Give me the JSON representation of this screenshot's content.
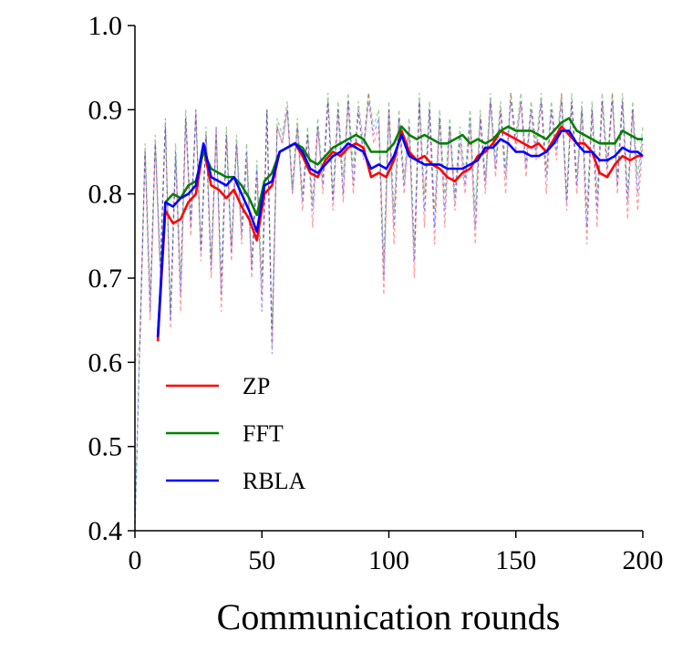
{
  "chart_data": {
    "type": "line",
    "title": "",
    "xlabel": "Communication rounds",
    "ylabel": "",
    "xlim": [
      0,
      200
    ],
    "ylim": [
      0.4,
      1.0
    ],
    "xticks": [
      0,
      50,
      100,
      150,
      200
    ],
    "xtick_labels": [
      "0",
      "50",
      "100",
      "150",
      "200"
    ],
    "yticks": [
      0.4,
      0.5,
      0.6,
      0.7,
      0.8,
      0.9,
      1.0
    ],
    "ytick_labels": [
      "0.4",
      "0.5",
      "0.6",
      "0.7",
      "0.8",
      "0.9",
      "1.0"
    ],
    "grid": false,
    "legend_position": "lower-left",
    "series": [
      {
        "name": "ZP",
        "color": "#ff0000",
        "x": [
          9,
          12,
          15,
          18,
          21,
          24,
          27,
          30,
          33,
          36,
          39,
          42,
          45,
          48,
          51,
          54,
          57,
          60,
          63,
          66,
          69,
          72,
          75,
          78,
          81,
          84,
          87,
          90,
          93,
          96,
          99,
          102,
          105,
          108,
          111,
          114,
          117,
          120,
          123,
          126,
          129,
          132,
          135,
          138,
          141,
          144,
          147,
          150,
          153,
          156,
          159,
          162,
          165,
          168,
          171,
          174,
          177,
          180,
          183,
          186,
          189,
          192,
          195,
          198,
          200
        ],
        "values": [
          0.625,
          0.78,
          0.765,
          0.77,
          0.79,
          0.8,
          0.855,
          0.81,
          0.805,
          0.795,
          0.805,
          0.785,
          0.77,
          0.745,
          0.8,
          0.81,
          0.85,
          0.855,
          0.86,
          0.845,
          0.825,
          0.82,
          0.84,
          0.85,
          0.845,
          0.855,
          0.86,
          0.855,
          0.82,
          0.825,
          0.82,
          0.84,
          0.875,
          0.85,
          0.84,
          0.845,
          0.835,
          0.83,
          0.82,
          0.815,
          0.825,
          0.83,
          0.845,
          0.85,
          0.86,
          0.875,
          0.87,
          0.865,
          0.86,
          0.855,
          0.86,
          0.85,
          0.865,
          0.88,
          0.87,
          0.86,
          0.86,
          0.85,
          0.825,
          0.82,
          0.835,
          0.845,
          0.84,
          0.845,
          0.845
        ]
      },
      {
        "name": "FFT",
        "color": "#008000",
        "x": [
          9,
          12,
          15,
          18,
          21,
          24,
          27,
          30,
          33,
          36,
          39,
          42,
          45,
          48,
          51,
          54,
          57,
          60,
          63,
          66,
          69,
          72,
          75,
          78,
          81,
          84,
          87,
          90,
          93,
          96,
          99,
          102,
          105,
          108,
          111,
          114,
          117,
          120,
          123,
          126,
          129,
          132,
          135,
          138,
          141,
          144,
          147,
          150,
          153,
          156,
          159,
          162,
          165,
          168,
          171,
          174,
          177,
          180,
          183,
          186,
          189,
          192,
          195,
          198,
          200
        ],
        "values": [
          0.63,
          0.79,
          0.8,
          0.795,
          0.81,
          0.815,
          0.85,
          0.83,
          0.825,
          0.82,
          0.82,
          0.81,
          0.795,
          0.775,
          0.815,
          0.825,
          0.85,
          0.855,
          0.86,
          0.855,
          0.84,
          0.835,
          0.845,
          0.855,
          0.86,
          0.865,
          0.87,
          0.865,
          0.85,
          0.85,
          0.85,
          0.86,
          0.88,
          0.87,
          0.865,
          0.87,
          0.865,
          0.86,
          0.86,
          0.865,
          0.87,
          0.86,
          0.865,
          0.86,
          0.865,
          0.875,
          0.88,
          0.875,
          0.875,
          0.875,
          0.87,
          0.865,
          0.875,
          0.885,
          0.89,
          0.875,
          0.87,
          0.865,
          0.86,
          0.86,
          0.86,
          0.875,
          0.87,
          0.865,
          0.865
        ]
      },
      {
        "name": "RBLA",
        "color": "#0000ff",
        "x": [
          9,
          12,
          15,
          18,
          21,
          24,
          27,
          30,
          33,
          36,
          39,
          42,
          45,
          48,
          51,
          54,
          57,
          60,
          63,
          66,
          69,
          72,
          75,
          78,
          81,
          84,
          87,
          90,
          93,
          96,
          99,
          102,
          105,
          108,
          111,
          114,
          117,
          120,
          123,
          126,
          129,
          132,
          135,
          138,
          141,
          144,
          147,
          150,
          153,
          156,
          159,
          162,
          165,
          168,
          171,
          174,
          177,
          180,
          183,
          186,
          189,
          192,
          195,
          198,
          200
        ],
        "values": [
          0.63,
          0.79,
          0.785,
          0.795,
          0.8,
          0.81,
          0.86,
          0.82,
          0.815,
          0.81,
          0.82,
          0.8,
          0.78,
          0.755,
          0.81,
          0.815,
          0.85,
          0.855,
          0.86,
          0.85,
          0.83,
          0.825,
          0.835,
          0.845,
          0.85,
          0.86,
          0.855,
          0.85,
          0.83,
          0.835,
          0.83,
          0.845,
          0.87,
          0.845,
          0.84,
          0.835,
          0.835,
          0.835,
          0.83,
          0.83,
          0.83,
          0.835,
          0.84,
          0.855,
          0.855,
          0.865,
          0.86,
          0.85,
          0.85,
          0.845,
          0.845,
          0.85,
          0.86,
          0.875,
          0.875,
          0.86,
          0.85,
          0.85,
          0.84,
          0.84,
          0.845,
          0.855,
          0.85,
          0.85,
          0.845
        ]
      },
      {
        "name": "ZP raw",
        "color": "#ff0000",
        "dashed": true,
        "x": [
          0,
          2,
          4,
          6,
          8,
          10,
          12,
          14,
          16,
          18,
          20,
          22,
          24,
          26,
          28,
          30,
          32,
          34,
          36,
          38,
          40,
          42,
          44,
          46,
          48,
          50,
          52,
          54,
          56,
          58,
          60,
          62,
          64,
          66,
          68,
          70,
          72,
          74,
          76,
          78,
          80,
          82,
          84,
          86,
          88,
          90,
          92,
          94,
          96,
          98,
          100,
          102,
          104,
          106,
          108,
          110,
          112,
          114,
          116,
          118,
          120,
          122,
          124,
          126,
          128,
          130,
          132,
          134,
          136,
          138,
          140,
          142,
          144,
          146,
          148,
          150,
          152,
          154,
          156,
          158,
          160,
          162,
          164,
          166,
          168,
          170,
          172,
          174,
          176,
          178,
          180,
          182,
          184,
          186,
          188,
          190,
          192,
          194,
          196,
          198,
          200
        ],
        "values": [
          0.6,
          0.62,
          0.85,
          0.65,
          0.86,
          0.7,
          0.88,
          0.64,
          0.84,
          0.66,
          0.89,
          0.75,
          0.9,
          0.72,
          0.87,
          0.7,
          0.88,
          0.66,
          0.87,
          0.72,
          0.86,
          0.74,
          0.84,
          0.7,
          0.82,
          0.68,
          0.9,
          0.62,
          0.88,
          0.86,
          0.9,
          0.8,
          0.88,
          0.78,
          0.87,
          0.76,
          0.88,
          0.8,
          0.91,
          0.78,
          0.9,
          0.79,
          0.91,
          0.8,
          0.9,
          0.84,
          0.92,
          0.86,
          0.88,
          0.68,
          0.9,
          0.74,
          0.89,
          0.8,
          0.88,
          0.7,
          0.91,
          0.76,
          0.9,
          0.74,
          0.89,
          0.76,
          0.88,
          0.78,
          0.86,
          0.8,
          0.88,
          0.74,
          0.89,
          0.8,
          0.91,
          0.82,
          0.9,
          0.8,
          0.92,
          0.85,
          0.91,
          0.82,
          0.9,
          0.84,
          0.91,
          0.8,
          0.9,
          0.84,
          0.92,
          0.78,
          0.91,
          0.8,
          0.9,
          0.74,
          0.9,
          0.76,
          0.91,
          0.82,
          0.92,
          0.8,
          0.91,
          0.77,
          0.9,
          0.78,
          0.86
        ]
      },
      {
        "name": "FFT raw",
        "color": "#008000",
        "dashed": true,
        "x": [
          0,
          2,
          4,
          6,
          8,
          10,
          12,
          14,
          16,
          18,
          20,
          22,
          24,
          26,
          28,
          30,
          32,
          34,
          36,
          38,
          40,
          42,
          44,
          46,
          48,
          50,
          52,
          54,
          56,
          58,
          60,
          62,
          64,
          66,
          68,
          70,
          72,
          74,
          76,
          78,
          80,
          82,
          84,
          86,
          88,
          90,
          92,
          94,
          96,
          98,
          100,
          102,
          104,
          106,
          108,
          110,
          112,
          114,
          116,
          118,
          120,
          122,
          124,
          126,
          128,
          130,
          132,
          134,
          136,
          138,
          140,
          142,
          144,
          146,
          148,
          150,
          152,
          154,
          156,
          158,
          160,
          162,
          164,
          166,
          168,
          170,
          172,
          174,
          176,
          178,
          180,
          182,
          184,
          186,
          188,
          190,
          192,
          194,
          196,
          198,
          200
        ],
        "values": [
          0.41,
          0.64,
          0.86,
          0.68,
          0.87,
          0.72,
          0.88,
          0.66,
          0.86,
          0.7,
          0.9,
          0.77,
          0.89,
          0.74,
          0.88,
          0.72,
          0.87,
          0.7,
          0.88,
          0.74,
          0.87,
          0.76,
          0.86,
          0.72,
          0.84,
          0.7,
          0.9,
          0.64,
          0.89,
          0.87,
          0.91,
          0.81,
          0.89,
          0.8,
          0.88,
          0.79,
          0.89,
          0.82,
          0.92,
          0.8,
          0.91,
          0.82,
          0.92,
          0.83,
          0.91,
          0.86,
          0.92,
          0.88,
          0.9,
          0.72,
          0.91,
          0.78,
          0.9,
          0.82,
          0.89,
          0.74,
          0.92,
          0.8,
          0.91,
          0.78,
          0.9,
          0.8,
          0.89,
          0.8,
          0.88,
          0.82,
          0.9,
          0.78,
          0.9,
          0.82,
          0.92,
          0.84,
          0.91,
          0.83,
          0.92,
          0.87,
          0.92,
          0.84,
          0.91,
          0.86,
          0.92,
          0.83,
          0.91,
          0.86,
          0.92,
          0.8,
          0.92,
          0.82,
          0.91,
          0.78,
          0.91,
          0.8,
          0.92,
          0.84,
          0.92,
          0.82,
          0.92,
          0.8,
          0.91,
          0.82,
          0.88
        ]
      },
      {
        "name": "RBLA raw",
        "color": "#0000ff",
        "dashed": true,
        "x": [
          0,
          2,
          4,
          6,
          8,
          10,
          12,
          14,
          16,
          18,
          20,
          22,
          24,
          26,
          28,
          30,
          32,
          34,
          36,
          38,
          40,
          42,
          44,
          46,
          48,
          50,
          52,
          54,
          56,
          58,
          60,
          62,
          64,
          66,
          68,
          70,
          72,
          74,
          76,
          78,
          80,
          82,
          84,
          86,
          88,
          90,
          92,
          94,
          96,
          98,
          100,
          102,
          104,
          106,
          108,
          110,
          112,
          114,
          116,
          118,
          120,
          122,
          124,
          126,
          128,
          130,
          132,
          134,
          136,
          138,
          140,
          142,
          144,
          146,
          148,
          150,
          152,
          154,
          156,
          158,
          160,
          162,
          164,
          166,
          168,
          170,
          172,
          174,
          176,
          178,
          180,
          182,
          184,
          186,
          188,
          190,
          192,
          194,
          196,
          198,
          200
        ],
        "values": [
          0.4,
          0.63,
          0.85,
          0.66,
          0.86,
          0.71,
          0.89,
          0.65,
          0.85,
          0.68,
          0.89,
          0.76,
          0.9,
          0.73,
          0.87,
          0.71,
          0.88,
          0.68,
          0.87,
          0.73,
          0.86,
          0.75,
          0.85,
          0.71,
          0.83,
          0.66,
          0.9,
          0.61,
          0.88,
          0.86,
          0.9,
          0.8,
          0.88,
          0.79,
          0.87,
          0.78,
          0.88,
          0.81,
          0.91,
          0.79,
          0.9,
          0.8,
          0.91,
          0.81,
          0.9,
          0.85,
          0.91,
          0.87,
          0.89,
          0.7,
          0.9,
          0.76,
          0.89,
          0.81,
          0.88,
          0.72,
          0.91,
          0.78,
          0.9,
          0.76,
          0.89,
          0.78,
          0.88,
          0.79,
          0.87,
          0.81,
          0.89,
          0.76,
          0.89,
          0.81,
          0.91,
          0.83,
          0.9,
          0.82,
          0.91,
          0.86,
          0.91,
          0.83,
          0.9,
          0.85,
          0.91,
          0.82,
          0.9,
          0.85,
          0.91,
          0.79,
          0.91,
          0.81,
          0.9,
          0.76,
          0.9,
          0.78,
          0.91,
          0.83,
          0.91,
          0.81,
          0.91,
          0.79,
          0.9,
          0.8,
          0.87
        ]
      }
    ],
    "legend": [
      {
        "label": "ZP",
        "color": "#ff0000"
      },
      {
        "label": "FFT",
        "color": "#008000"
      },
      {
        "label": "RBLA",
        "color": "#0000ff"
      }
    ]
  }
}
